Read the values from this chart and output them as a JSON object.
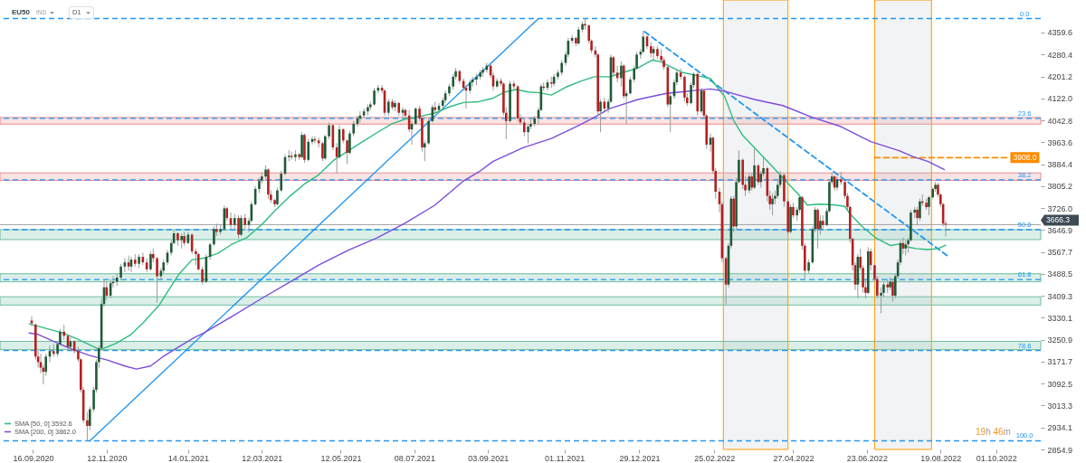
{
  "chart_data": {
    "type": "candlestick",
    "title": "EU50",
    "annotations": [
      "IND",
      "D1",
      "19h 46m",
      {
        "text": "3908.0",
        "x": "2022-10-12",
        "y": 3908
      },
      {
        "text": "0.0",
        "x": "2022-10-23",
        "y": 4410
      },
      {
        "text": "23.6",
        "x": "2022-10-23",
        "y": 4050
      },
      {
        "text": "38.2",
        "x": "2022-10-23",
        "y": 3828
      },
      {
        "text": "50.0",
        "x": "2022-10-23",
        "y": 3648
      },
      {
        "text": "61.8",
        "x": "2022-10-23",
        "y": 3468
      },
      {
        "text": "78.6",
        "x": "2022-10-23",
        "y": 3212
      },
      {
        "text": "100.0",
        "x": "2022-10-23",
        "y": 2886
      }
    ],
    "x": [
      "2020-09-15",
      "2020-09-18",
      "2020-09-20",
      "2020-09-22",
      "2020-09-24",
      "2020-09-26",
      "2020-09-29",
      "2020-10-02",
      "2020-10-05",
      "2020-10-07",
      "2020-10-10",
      "2020-10-13",
      "2020-10-15",
      "2020-10-18",
      "2020-10-21",
      "2020-10-23",
      "2020-10-25",
      "2020-10-28",
      "2020-10-30",
      "2020-11-02",
      "2020-11-04",
      "2020-11-06",
      "2020-11-08",
      "2020-11-10",
      "2020-11-12",
      "2020-11-15",
      "2020-11-17",
      "2020-11-20",
      "2020-11-23",
      "2020-11-26",
      "2020-11-29",
      "2020-12-01",
      "2020-12-04",
      "2020-12-07",
      "2020-12-10",
      "2020-12-13",
      "2020-12-16",
      "2020-12-18",
      "2020-12-21",
      "2020-12-24",
      "2020-12-26",
      "2020-12-29",
      "2021-01-01",
      "2021-01-03",
      "2021-01-06",
      "2021-01-09",
      "2021-01-11",
      "2021-01-14",
      "2021-01-17",
      "2021-01-20",
      "2021-01-22",
      "2021-01-25",
      "2021-01-28",
      "2021-01-31",
      "2021-02-03",
      "2021-02-05",
      "2021-02-08",
      "2021-02-11",
      "2021-02-13",
      "2021-02-16",
      "2021-02-19",
      "2021-02-22",
      "2021-02-24",
      "2021-02-27",
      "2021-03-02",
      "2021-03-04",
      "2021-03-07",
      "2021-03-10",
      "2021-03-12",
      "2021-03-15",
      "2021-03-17",
      "2021-03-19",
      "2021-03-22",
      "2021-03-24",
      "2021-03-27",
      "2021-03-30",
      "2021-04-02",
      "2021-04-04",
      "2021-04-07",
      "2021-04-10",
      "2021-04-12",
      "2021-04-14",
      "2021-04-17",
      "2021-04-20",
      "2021-04-22",
      "2021-04-25",
      "2021-04-28",
      "2021-04-30",
      "2021-05-03",
      "2021-05-06",
      "2021-05-09",
      "2021-05-11",
      "2021-05-14",
      "2021-05-17",
      "2021-05-19",
      "2021-05-22",
      "2021-05-25",
      "2021-05-27",
      "2021-05-30",
      "2021-06-02",
      "2021-06-04",
      "2021-06-07",
      "2021-06-10",
      "2021-06-13",
      "2021-06-15",
      "2021-06-18",
      "2021-06-21",
      "2021-06-23",
      "2021-06-26",
      "2021-06-29",
      "2021-07-01",
      "2021-07-04",
      "2021-07-06",
      "2021-07-09",
      "2021-07-12",
      "2021-07-14",
      "2021-07-16",
      "2021-07-19",
      "2021-07-22",
      "2021-07-24",
      "2021-07-27",
      "2021-07-30",
      "2021-08-01",
      "2021-08-04",
      "2021-08-07",
      "2021-08-09",
      "2021-08-12",
      "2021-08-15",
      "2021-08-17",
      "2021-08-20",
      "2021-08-22",
      "2021-08-25",
      "2021-08-28",
      "2021-08-30",
      "2021-09-02",
      "2021-09-05",
      "2021-09-07",
      "2021-09-10",
      "2021-09-13",
      "2021-09-15",
      "2021-09-17",
      "2021-09-20",
      "2021-09-23",
      "2021-09-26",
      "2021-09-28",
      "2021-10-01",
      "2021-10-04",
      "2021-10-06",
      "2021-10-09",
      "2021-10-12",
      "2021-10-14",
      "2021-10-16",
      "2021-10-19",
      "2021-10-22",
      "2021-10-24",
      "2021-10-27",
      "2021-10-30",
      "2021-11-02",
      "2021-11-04",
      "2021-11-07",
      "2021-11-10",
      "2021-11-12",
      "2021-11-15",
      "2021-11-17",
      "2021-11-20",
      "2021-11-22",
      "2021-11-25",
      "2021-11-27",
      "2021-11-29",
      "2021-12-02",
      "2021-12-05",
      "2021-12-07",
      "2021-12-09",
      "2021-12-12",
      "2021-12-15",
      "2021-12-17",
      "2021-12-19",
      "2021-12-22",
      "2021-12-25",
      "2021-12-27",
      "2021-12-30",
      "2022-01-01",
      "2022-01-04",
      "2022-01-07",
      "2022-01-09",
      "2022-01-12",
      "2022-01-15",
      "2022-01-17",
      "2022-01-20",
      "2022-01-22",
      "2022-01-25",
      "2022-01-27",
      "2022-01-30",
      "2022-02-02",
      "2022-02-04",
      "2022-02-07",
      "2022-02-09",
      "2022-02-12",
      "2022-02-15",
      "2022-02-17",
      "2022-02-19",
      "2022-02-22",
      "2022-02-24",
      "2022-02-26",
      "2022-03-01",
      "2022-03-03",
      "2022-03-06",
      "2022-03-08",
      "2022-03-10",
      "2022-03-12",
      "2022-03-14",
      "2022-03-16",
      "2022-03-19",
      "2022-03-21",
      "2022-03-24",
      "2022-03-26",
      "2022-03-28",
      "2022-03-31",
      "2022-04-02",
      "2022-04-04",
      "2022-04-07",
      "2022-04-09",
      "2022-04-11",
      "2022-04-13",
      "2022-04-15",
      "2022-04-17",
      "2022-04-20",
      "2022-04-23",
      "2022-04-25",
      "2022-04-27",
      "2022-04-30",
      "2022-05-02",
      "2022-05-04",
      "2022-05-06",
      "2022-05-09",
      "2022-05-12",
      "2022-05-14",
      "2022-05-16",
      "2022-05-18",
      "2022-05-20",
      "2022-05-23",
      "2022-05-25",
      "2022-05-27",
      "2022-05-29",
      "2022-05-31",
      "2022-06-03",
      "2022-06-06",
      "2022-06-08",
      "2022-06-10",
      "2022-06-12",
      "2022-06-14",
      "2022-06-16",
      "2022-06-18",
      "2022-06-20",
      "2022-06-22",
      "2022-06-24",
      "2022-06-26",
      "2022-06-29",
      "2022-07-01",
      "2022-07-04",
      "2022-07-06",
      "2022-07-09",
      "2022-07-11",
      "2022-07-13",
      "2022-07-15",
      "2022-07-17",
      "2022-07-19",
      "2022-07-21",
      "2022-07-23",
      "2022-07-25",
      "2022-07-27",
      "2022-07-30",
      "2022-08-01",
      "2022-08-03",
      "2022-08-05",
      "2022-08-08",
      "2022-08-10",
      "2022-08-13",
      "2022-08-15",
      "2022-08-17",
      "2022-08-19",
      "2022-08-21",
      "2022-08-23"
    ],
    "ohlc": [
      [
        3320,
        3335,
        3300,
        3310
      ],
      [
        3305,
        3310,
        3180,
        3190
      ],
      [
        3190,
        3215,
        3150,
        3170
      ],
      [
        3170,
        3200,
        3130,
        3150
      ],
      [
        3150,
        3160,
        3090,
        3135
      ],
      [
        3135,
        3200,
        3120,
        3190
      ],
      [
        3190,
        3230,
        3170,
        3210
      ],
      [
        3210,
        3235,
        3190,
        3200
      ],
      [
        3200,
        3245,
        3190,
        3235
      ],
      [
        3235,
        3290,
        3230,
        3280
      ],
      [
        3280,
        3305,
        3250,
        3265
      ],
      [
        3265,
        3270,
        3215,
        3225
      ],
      [
        3225,
        3260,
        3210,
        3245
      ],
      [
        3245,
        3250,
        3200,
        3210
      ],
      [
        3210,
        3225,
        3170,
        3180
      ],
      [
        3180,
        3185,
        3060,
        3070
      ],
      [
        3070,
        3080,
        2950,
        2960
      ],
      [
        2960,
        2990,
        2886,
        2940
      ],
      [
        2940,
        3010,
        2925,
        3000
      ],
      [
        3000,
        3080,
        2990,
        3070
      ],
      [
        3070,
        3180,
        3060,
        3170
      ],
      [
        3170,
        3230,
        3150,
        3220
      ],
      [
        3220,
        3400,
        3210,
        3380
      ],
      [
        3380,
        3470,
        3370,
        3440
      ],
      [
        3440,
        3460,
        3395,
        3410
      ],
      [
        3410,
        3470,
        3400,
        3455
      ],
      [
        3455,
        3480,
        3440,
        3460
      ],
      [
        3460,
        3490,
        3445,
        3475
      ],
      [
        3475,
        3525,
        3465,
        3515
      ],
      [
        3515,
        3545,
        3495,
        3530
      ],
      [
        3530,
        3555,
        3500,
        3515
      ],
      [
        3515,
        3550,
        3495,
        3540
      ],
      [
        3540,
        3560,
        3515,
        3525
      ],
      [
        3525,
        3560,
        3510,
        3550
      ],
      [
        3550,
        3565,
        3520,
        3530
      ],
      [
        3530,
        3545,
        3495,
        3505
      ],
      [
        3505,
        3570,
        3500,
        3560
      ],
      [
        3560,
        3580,
        3530,
        3545
      ],
      [
        3545,
        3550,
        3385,
        3480
      ],
      [
        3480,
        3510,
        3465,
        3500
      ],
      [
        3500,
        3540,
        3490,
        3530
      ],
      [
        3530,
        3575,
        3520,
        3565
      ],
      [
        3565,
        3610,
        3555,
        3600
      ],
      [
        3600,
        3645,
        3595,
        3635
      ],
      [
        3635,
        3640,
        3590,
        3610
      ],
      [
        3610,
        3635,
        3580,
        3625
      ],
      [
        3625,
        3640,
        3590,
        3600
      ],
      [
        3600,
        3640,
        3595,
        3630
      ],
      [
        3630,
        3635,
        3560,
        3570
      ],
      [
        3570,
        3580,
        3520,
        3560
      ],
      [
        3560,
        3565,
        3500,
        3505
      ],
      [
        3505,
        3515,
        3450,
        3460
      ],
      [
        3460,
        3560,
        3455,
        3550
      ],
      [
        3550,
        3600,
        3540,
        3595
      ],
      [
        3595,
        3660,
        3590,
        3650
      ],
      [
        3650,
        3670,
        3625,
        3640
      ],
      [
        3640,
        3665,
        3630,
        3650
      ],
      [
        3650,
        3735,
        3645,
        3725
      ],
      [
        3725,
        3730,
        3680,
        3690
      ],
      [
        3690,
        3710,
        3650,
        3665
      ],
      [
        3665,
        3705,
        3650,
        3690
      ],
      [
        3690,
        3700,
        3615,
        3630
      ],
      [
        3630,
        3700,
        3625,
        3690
      ],
      [
        3690,
        3705,
        3650,
        3665
      ],
      [
        3665,
        3690,
        3640,
        3680
      ],
      [
        3680,
        3750,
        3675,
        3740
      ],
      [
        3740,
        3805,
        3735,
        3795
      ],
      [
        3795,
        3835,
        3780,
        3825
      ],
      [
        3825,
        3855,
        3815,
        3840
      ],
      [
        3840,
        3880,
        3830,
        3865
      ],
      [
        3865,
        3870,
        3760,
        3775
      ],
      [
        3775,
        3790,
        3745,
        3755
      ],
      [
        3755,
        3760,
        3730,
        3740
      ],
      [
        3740,
        3800,
        3735,
        3790
      ],
      [
        3790,
        3860,
        3785,
        3850
      ],
      [
        3850,
        3920,
        3845,
        3910
      ],
      [
        3910,
        3935,
        3895,
        3915
      ],
      [
        3915,
        3930,
        3900,
        3910
      ],
      [
        3910,
        3935,
        3895,
        3920
      ],
      [
        3920,
        3925,
        3900,
        3910
      ],
      [
        3910,
        4000,
        3905,
        3990
      ],
      [
        3990,
        3995,
        3890,
        3900
      ],
      [
        3900,
        3975,
        3895,
        3965
      ],
      [
        3965,
        3985,
        3955,
        3975
      ],
      [
        3975,
        3985,
        3960,
        3970
      ],
      [
        3970,
        3980,
        3945,
        3960
      ],
      [
        3960,
        3965,
        3895,
        3905
      ],
      [
        3905,
        3990,
        3900,
        3985
      ],
      [
        3985,
        4035,
        3975,
        4025
      ],
      [
        4025,
        4030,
        3935,
        3945
      ],
      [
        3945,
        3960,
        3850,
        3910
      ],
      [
        3910,
        4025,
        3905,
        4010
      ],
      [
        4010,
        4015,
        3960,
        3970
      ],
      [
        3970,
        3975,
        3885,
        3925
      ],
      [
        3925,
        4005,
        3920,
        3995
      ],
      [
        3995,
        4040,
        3985,
        4030
      ],
      [
        4030,
        4060,
        4020,
        4050
      ],
      [
        4050,
        4075,
        4035,
        4060
      ],
      [
        4060,
        4085,
        4050,
        4075
      ],
      [
        4075,
        4100,
        4060,
        4090
      ],
      [
        4090,
        4110,
        4080,
        4100
      ],
      [
        4100,
        4160,
        4095,
        4150
      ],
      [
        4150,
        4170,
        4140,
        4160
      ],
      [
        4160,
        4170,
        4140,
        4150
      ],
      [
        4150,
        4155,
        4060,
        4070
      ],
      [
        4070,
        4120,
        4060,
        4110
      ],
      [
        4110,
        4120,
        4080,
        4090
      ],
      [
        4090,
        4115,
        4075,
        4105
      ],
      [
        4105,
        4110,
        4060,
        4070
      ],
      [
        4070,
        4090,
        4055,
        4080
      ],
      [
        4080,
        4085,
        4050,
        4060
      ],
      [
        4060,
        4080,
        4000,
        4010
      ],
      [
        4010,
        4040,
        3955,
        4030
      ],
      [
        4030,
        4090,
        4025,
        4085
      ],
      [
        4085,
        4095,
        4040,
        4050
      ],
      [
        4050,
        4055,
        3930,
        3945
      ],
      [
        3945,
        3970,
        3895,
        3960
      ],
      [
        3960,
        4050,
        3955,
        4040
      ],
      [
        4040,
        4100,
        4035,
        4090
      ],
      [
        4090,
        4110,
        4065,
        4080
      ],
      [
        4080,
        4105,
        4070,
        4095
      ],
      [
        4095,
        4125,
        4085,
        4115
      ],
      [
        4115,
        4150,
        4105,
        4140
      ],
      [
        4140,
        4175,
        4130,
        4165
      ],
      [
        4165,
        4210,
        4155,
        4200
      ],
      [
        4200,
        4232,
        4190,
        4220
      ],
      [
        4220,
        4225,
        4175,
        4185
      ],
      [
        4185,
        4195,
        4150,
        4160
      ],
      [
        4160,
        4170,
        4085,
        4150
      ],
      [
        4150,
        4190,
        4140,
        4180
      ],
      [
        4180,
        4200,
        4165,
        4190
      ],
      [
        4190,
        4210,
        4170,
        4200
      ],
      [
        4200,
        4225,
        4190,
        4215
      ],
      [
        4215,
        4235,
        4200,
        4225
      ],
      [
        4225,
        4250,
        4215,
        4240
      ],
      [
        4240,
        4245,
        4195,
        4205
      ],
      [
        4205,
        4215,
        4150,
        4165
      ],
      [
        4165,
        4195,
        4160,
        4185
      ],
      [
        4185,
        4195,
        4165,
        4175
      ],
      [
        4175,
        4180,
        4060,
        4070
      ],
      [
        4070,
        4090,
        3975,
        4040
      ],
      [
        4040,
        4185,
        4035,
        4175
      ],
      [
        4175,
        4185,
        4150,
        4165
      ],
      [
        4165,
        4170,
        4040,
        4050
      ],
      [
        4050,
        4065,
        4025,
        4035
      ],
      [
        4035,
        4050,
        3985,
        4000
      ],
      [
        4000,
        4030,
        3960,
        4020
      ],
      [
        4020,
        4050,
        4010,
        4030
      ],
      [
        4030,
        4060,
        4020,
        4050
      ],
      [
        4050,
        4090,
        4030,
        4080
      ],
      [
        4080,
        4175,
        4075,
        4165
      ],
      [
        4165,
        4180,
        4150,
        4160
      ],
      [
        4160,
        4190,
        4150,
        4180
      ],
      [
        4180,
        4200,
        4160,
        4175
      ],
      [
        4175,
        4210,
        4165,
        4200
      ],
      [
        4200,
        4225,
        4190,
        4215
      ],
      [
        4215,
        4260,
        4205,
        4250
      ],
      [
        4250,
        4290,
        4240,
        4280
      ],
      [
        4280,
        4340,
        4270,
        4330
      ],
      [
        4330,
        4350,
        4320,
        4340
      ],
      [
        4340,
        4345,
        4310,
        4320
      ],
      [
        4320,
        4380,
        4315,
        4370
      ],
      [
        4370,
        4400,
        4360,
        4390
      ],
      [
        4390,
        4410,
        4370,
        4385
      ],
      [
        4385,
        4390,
        4320,
        4330
      ],
      [
        4330,
        4335,
        4285,
        4295
      ],
      [
        4295,
        4310,
        4270,
        4280
      ],
      [
        4280,
        4285,
        4060,
        4075
      ],
      [
        4075,
        4120,
        4000,
        4110
      ],
      [
        4110,
        4125,
        4075,
        4085
      ],
      [
        4085,
        4120,
        4070,
        4110
      ],
      [
        4110,
        4280,
        4105,
        4270
      ],
      [
        4270,
        4275,
        4200,
        4215
      ],
      [
        4215,
        4240,
        4180,
        4195
      ],
      [
        4195,
        4255,
        4165,
        4240
      ],
      [
        4240,
        4245,
        4120,
        4130
      ],
      [
        4130,
        4150,
        4030,
        4140
      ],
      [
        4140,
        4200,
        4135,
        4190
      ],
      [
        4190,
        4240,
        4180,
        4230
      ],
      [
        4230,
        4290,
        4225,
        4280
      ],
      [
        4280,
        4300,
        4265,
        4290
      ],
      [
        4290,
        4365,
        4285,
        4345
      ],
      [
        4345,
        4350,
        4300,
        4310
      ],
      [
        4310,
        4325,
        4270,
        4285
      ],
      [
        4285,
        4310,
        4260,
        4300
      ],
      [
        4300,
        4310,
        4265,
        4275
      ],
      [
        4275,
        4300,
        4250,
        4260
      ],
      [
        4260,
        4270,
        4225,
        4235
      ],
      [
        4235,
        4240,
        4090,
        4100
      ],
      [
        4100,
        4140,
        4000,
        4130
      ],
      [
        4130,
        4190,
        4120,
        4180
      ],
      [
        4180,
        4225,
        4170,
        4215
      ],
      [
        4215,
        4230,
        4190,
        4200
      ],
      [
        4200,
        4205,
        4110,
        4125
      ],
      [
        4125,
        4140,
        4095,
        4105
      ],
      [
        4105,
        4180,
        4100,
        4170
      ],
      [
        4170,
        4215,
        4160,
        4210
      ],
      [
        4210,
        4215,
        4060,
        4075
      ],
      [
        4075,
        4160,
        4070,
        4150
      ],
      [
        4150,
        4155,
        4050,
        4060
      ],
      [
        4060,
        4065,
        3940,
        3955
      ],
      [
        3955,
        3995,
        3930,
        3980
      ],
      [
        3980,
        3985,
        3850,
        3860
      ],
      [
        3860,
        3870,
        3760,
        3785
      ],
      [
        3785,
        3800,
        3710,
        3740
      ],
      [
        3740,
        3750,
        3530,
        3545
      ],
      [
        3545,
        3550,
        3378,
        3450
      ],
      [
        3450,
        3600,
        3440,
        3590
      ],
      [
        3590,
        3770,
        3580,
        3760
      ],
      [
        3760,
        3770,
        3640,
        3660
      ],
      [
        3660,
        3835,
        3650,
        3820
      ],
      [
        3820,
        3935,
        3815,
        3900
      ],
      [
        3900,
        3905,
        3795,
        3810
      ],
      [
        3810,
        3840,
        3770,
        3790
      ],
      [
        3790,
        3850,
        3780,
        3840
      ],
      [
        3840,
        3850,
        3790,
        3800
      ],
      [
        3800,
        3940,
        3795,
        3880
      ],
      [
        3880,
        3885,
        3810,
        3820
      ],
      [
        3820,
        3860,
        3800,
        3850
      ],
      [
        3850,
        3910,
        3840,
        3870
      ],
      [
        3870,
        3875,
        3750,
        3770
      ],
      [
        3770,
        3790,
        3720,
        3740
      ],
      [
        3740,
        3780,
        3700,
        3760
      ],
      [
        3760,
        3790,
        3740,
        3770
      ],
      [
        3770,
        3830,
        3760,
        3810
      ],
      [
        3810,
        3860,
        3800,
        3845
      ],
      [
        3845,
        3850,
        3730,
        3750
      ],
      [
        3750,
        3760,
        3630,
        3640
      ],
      [
        3640,
        3740,
        3635,
        3730
      ],
      [
        3730,
        3745,
        3690,
        3700
      ],
      [
        3700,
        3730,
        3680,
        3720
      ],
      [
        3720,
        3775,
        3710,
        3765
      ],
      [
        3765,
        3770,
        3575,
        3590
      ],
      [
        3590,
        3600,
        3470,
        3500
      ],
      [
        3500,
        3540,
        3490,
        3530
      ],
      [
        3530,
        3660,
        3525,
        3650
      ],
      [
        3650,
        3730,
        3640,
        3720
      ],
      [
        3720,
        3725,
        3580,
        3650
      ],
      [
        3650,
        3700,
        3630,
        3680
      ],
      [
        3680,
        3700,
        3650,
        3665
      ],
      [
        3665,
        3725,
        3660,
        3715
      ],
      [
        3715,
        3830,
        3710,
        3820
      ],
      [
        3820,
        3855,
        3810,
        3840
      ],
      [
        3840,
        3845,
        3790,
        3800
      ],
      [
        3800,
        3840,
        3790,
        3830
      ],
      [
        3830,
        3857,
        3810,
        3820
      ],
      [
        3820,
        3825,
        3760,
        3770
      ],
      [
        3770,
        3780,
        3720,
        3730
      ],
      [
        3730,
        3735,
        3600,
        3615
      ],
      [
        3615,
        3620,
        3500,
        3520
      ],
      [
        3520,
        3530,
        3430,
        3450
      ],
      [
        3450,
        3560,
        3400,
        3550
      ],
      [
        3550,
        3580,
        3500,
        3510
      ],
      [
        3510,
        3520,
        3420,
        3440
      ],
      [
        3440,
        3470,
        3400,
        3420
      ],
      [
        3420,
        3585,
        3415,
        3570
      ],
      [
        3570,
        3580,
        3500,
        3520
      ],
      [
        3520,
        3525,
        3460,
        3470
      ],
      [
        3470,
        3480,
        3400,
        3410
      ],
      [
        3410,
        3440,
        3346,
        3420
      ],
      [
        3420,
        3460,
        3405,
        3450
      ],
      [
        3450,
        3470,
        3420,
        3440
      ],
      [
        3440,
        3475,
        3430,
        3460
      ],
      [
        3460,
        3465,
        3389,
        3410
      ],
      [
        3410,
        3490,
        3400,
        3480
      ],
      [
        3480,
        3540,
        3470,
        3530
      ],
      [
        3530,
        3610,
        3520,
        3600
      ],
      [
        3600,
        3620,
        3560,
        3580
      ],
      [
        3580,
        3610,
        3555,
        3595
      ],
      [
        3595,
        3620,
        3565,
        3610
      ],
      [
        3610,
        3720,
        3605,
        3710
      ],
      [
        3710,
        3730,
        3690,
        3720
      ],
      [
        3720,
        3730,
        3665,
        3690
      ],
      [
        3690,
        3760,
        3680,
        3750
      ],
      [
        3750,
        3775,
        3735,
        3745
      ],
      [
        3745,
        3760,
        3720,
        3730
      ],
      [
        3730,
        3770,
        3700,
        3765
      ],
      [
        3765,
        3800,
        3760,
        3795
      ],
      [
        3795,
        3820,
        3785,
        3810
      ],
      [
        3810,
        3818,
        3765,
        3775
      ],
      [
        3775,
        3780,
        3730,
        3740
      ],
      [
        3740,
        3745,
        3660,
        3670
      ],
      [
        3670,
        3680,
        3623,
        3666.3
      ]
    ],
    "series": [
      {
        "name": "SMA [50, 0] 3592.6",
        "color": "#2dbd7e",
        "type": "line",
        "x": [
          "2020-09-13",
          "2020-09-26",
          "2020-10-10",
          "2020-10-21",
          "2020-10-30",
          "2020-11-07",
          "2020-11-19",
          "2020-12-01",
          "2020-12-11",
          "2020-12-23",
          "2021-01-01",
          "2021-01-07",
          "2021-01-17",
          "2021-01-26",
          "2021-02-06",
          "2021-02-17",
          "2021-02-28",
          "2021-03-12",
          "2021-03-22",
          "2021-04-03",
          "2021-04-14",
          "2021-04-25",
          "2021-05-07",
          "2021-05-18",
          "2021-05-29",
          "2021-06-09",
          "2021-06-21",
          "2021-07-01",
          "2021-07-13",
          "2021-07-24",
          "2021-08-04",
          "2021-08-15",
          "2021-08-27",
          "2021-09-07",
          "2021-09-16",
          "2021-09-25",
          "2021-10-04",
          "2021-10-13",
          "2021-10-22",
          "2021-11-02",
          "2021-11-13",
          "2021-11-24",
          "2021-12-06",
          "2021-12-17",
          "2021-12-28",
          "2022-01-08",
          "2022-01-15",
          "2022-01-19",
          "2022-01-31",
          "2022-02-11",
          "2022-02-22",
          "2022-03-03",
          "2022-03-05",
          "2022-03-12",
          "2022-03-19",
          "2022-03-28",
          "2022-04-08",
          "2022-04-19",
          "2022-04-30",
          "2022-05-08",
          "2022-05-18",
          "2022-05-30",
          "2022-06-06",
          "2022-06-10",
          "2022-06-19",
          "2022-06-30",
          "2022-07-11",
          "2022-07-18",
          "2022-07-25",
          "2022-07-31",
          "2022-08-09",
          "2022-08-17",
          "2022-08-23"
        ],
        "values": [
          3308,
          3292,
          3274,
          3252,
          3232,
          3214,
          3237,
          3270,
          3316,
          3378,
          3445,
          3488,
          3539,
          3545,
          3563,
          3596,
          3618,
          3667,
          3716,
          3770,
          3813,
          3846,
          3900,
          3933,
          3966,
          3998,
          4031,
          4047,
          4058,
          4069,
          4091,
          4107,
          4110,
          4123,
          4145,
          4154,
          4145,
          4142,
          4134,
          4162,
          4183,
          4200,
          4200,
          4216,
          4232,
          4260,
          4254,
          4243,
          4216,
          4205,
          4194,
          4140,
          4129,
          4042,
          3988,
          3944,
          3890,
          3835,
          3781,
          3737,
          3740,
          3737,
          3732,
          3705,
          3661,
          3618,
          3591,
          3596,
          3585,
          3580,
          3576,
          3580,
          3592
        ]
      },
      {
        "name": "SMA [200, 0] 3862.0",
        "color": "#7c4ddb",
        "type": "line",
        "x": [
          "2020-09-13",
          "2020-09-20",
          "2020-10-03",
          "2020-10-17",
          "2020-10-30",
          "2020-11-13",
          "2020-11-26",
          "2020-12-05",
          "2020-12-16",
          "2020-12-25",
          "2021-01-07",
          "2021-01-19",
          "2021-01-26",
          "2021-02-17",
          "2021-03-12",
          "2021-04-03",
          "2021-04-25",
          "2021-05-18",
          "2021-06-09",
          "2021-07-01",
          "2021-07-24",
          "2021-08-15",
          "2021-08-27",
          "2021-09-07",
          "2021-09-30",
          "2021-10-22",
          "2021-11-13",
          "2021-11-24",
          "2021-12-06",
          "2021-12-28",
          "2022-01-19",
          "2022-02-11",
          "2022-02-22",
          "2022-03-05",
          "2022-03-28",
          "2022-04-19",
          "2022-05-12",
          "2022-06-03",
          "2022-06-26",
          "2022-07-18",
          "2022-07-29",
          "2022-08-09",
          "2022-08-22"
        ],
        "values": [
          3275,
          3270,
          3243,
          3215,
          3194,
          3177,
          3156,
          3145,
          3156,
          3188,
          3226,
          3259,
          3275,
          3335,
          3400,
          3460,
          3520,
          3574,
          3618,
          3672,
          3737,
          3824,
          3857,
          3895,
          3944,
          3977,
          4026,
          4053,
          4085,
          4118,
          4140,
          4151,
          4156,
          4148,
          4118,
          4096,
          4053,
          4020,
          3966,
          3933,
          3911,
          3895,
          3865
        ]
      },
      {
        "color": "#2196f3",
        "type": "line",
        "x": [
          "2020-10-30",
          "2021-10-12"
        ],
        "values": [
          2886,
          4410
        ]
      },
      {
        "color": "#2196f3",
        "type": "line",
        "line_style": "dashed",
        "x": [
          "2022-01-02",
          "2022-08-24"
        ],
        "values": [
          4363,
          3555
        ]
      },
      {
        "color": "#ff8c00",
        "type": "line",
        "line_style": "dashed",
        "x": [
          "2022-06-29",
          "2022-10-12"
        ],
        "values": [
          3908,
          3908
        ]
      }
    ],
    "ref_lines": [
      {
        "axis": "y",
        "value": 4410,
        "color": "#2196f3",
        "line_style": "dashed"
      },
      {
        "axis": "y",
        "value": 4050,
        "color": "#2196f3",
        "line_style": "dashed"
      },
      {
        "axis": "y",
        "value": 3828,
        "color": "#2196f3",
        "line_style": "dashed"
      },
      {
        "axis": "y",
        "value": 3648,
        "color": "#2196f3",
        "line_style": "dashed"
      },
      {
        "axis": "y",
        "value": 3468,
        "color": "#2196f3",
        "line_style": "dashed"
      },
      {
        "axis": "y",
        "value": 3212,
        "color": "#2196f3",
        "line_style": "dashed"
      },
      {
        "axis": "y",
        "value": 2886,
        "color": "#2196f3",
        "line_style": "dashed"
      },
      {
        "axis": "y",
        "value": 3666.3,
        "label": "3666.3",
        "color": "#9e9e9e",
        "line_style": "solid"
      }
    ],
    "bands": [
      {
        "axis": "y",
        "from": 4029,
        "to": 4053,
        "color": "#e57373"
      },
      {
        "axis": "y",
        "from": 3826,
        "to": 3853,
        "color": "#e57373"
      },
      {
        "axis": "y",
        "from": 3612,
        "to": 3648,
        "color": "#4caf8a"
      },
      {
        "axis": "y",
        "from": 3460,
        "to": 3489,
        "color": "#4caf8a"
      },
      {
        "axis": "y",
        "from": 3376,
        "to": 3406,
        "color": "#4caf8a"
      },
      {
        "axis": "y",
        "from": 3215,
        "to": 3245,
        "color": "#4caf8a"
      },
      {
        "axis": "x",
        "from": "2022-03-04",
        "to": "2022-04-23",
        "color": "#ff9800"
      },
      {
        "axis": "x",
        "from": "2022-06-29",
        "to": "2022-08-12",
        "color": "#ff9800"
      }
    ],
    "xlim": [
      "2020-08-25",
      "2022-11-01"
    ],
    "xticks": [
      {
        "value": "2020-09-16",
        "label": "16.09.2020"
      },
      {
        "value": "2020-11-12",
        "label": "12.11.2020"
      },
      {
        "value": "2021-01-14",
        "label": "14.01.2021"
      },
      {
        "value": "2021-03-12",
        "label": "12.03.2021"
      },
      {
        "value": "2021-05-12",
        "label": "12.05.2021"
      },
      {
        "value": "2021-07-08",
        "label": "08.07.2021"
      },
      {
        "value": "2021-09-03",
        "label": "03.09.2021"
      },
      {
        "value": "2021-11-01",
        "label": "01.11.2021"
      },
      {
        "value": "2021-12-29",
        "label": "29.12.2021"
      },
      {
        "value": "2022-02-25",
        "label": "25.02.2022"
      },
      {
        "value": "2022-04-27",
        "label": "27.04.2022"
      },
      {
        "value": "2022-06-23",
        "label": "23.06.2022"
      },
      {
        "value": "2022-08-19",
        "label": "19.08.2022"
      },
      {
        "value": "2022-10-01",
        "label": "01.10.2022"
      }
    ],
    "ylim": [
      2854.9,
      4477
    ],
    "yticks": [
      2854.9,
      2934.1,
      3013.3,
      3092.5,
      3171.7,
      3250.9,
      3330.1,
      3409.3,
      3488.5,
      3567.7,
      3646.9,
      {
        "value": 3726,
        "label": "3726.0"
      },
      3805.2,
      3884.4,
      3963.6,
      4042.8,
      {
        "value": 4122,
        "label": "4122.0"
      },
      4201.2,
      4280.4,
      4359.6
    ],
    "legend": "bottom left"
  }
}
